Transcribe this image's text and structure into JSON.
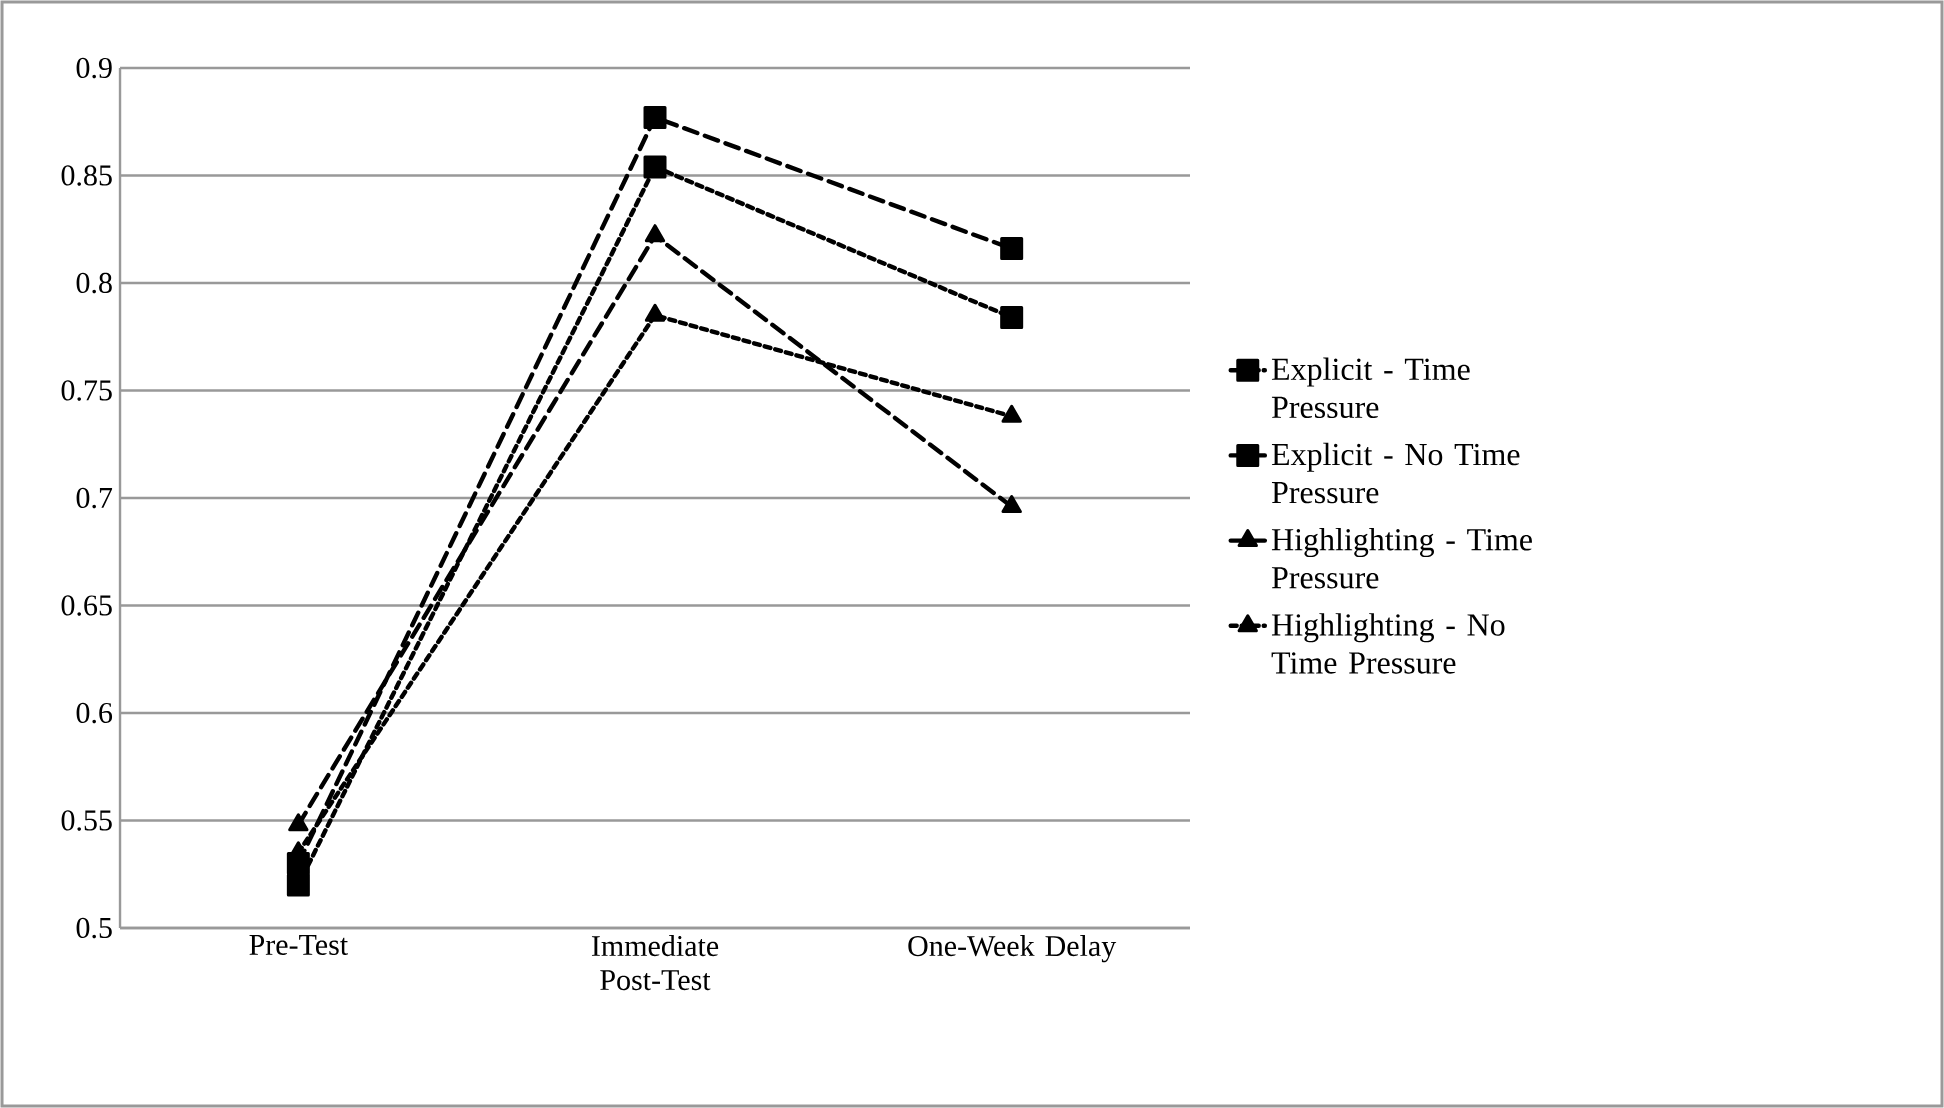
{
  "chart_data": {
    "type": "line",
    "categories": [
      "Pre-Test",
      "Immediate Post-Test",
      "One-Week Delay"
    ],
    "series": [
      {
        "name": "Explicit - Time Pressure",
        "color": "#000000",
        "values": [
          0.52,
          0.854,
          0.784
        ],
        "marker": "square",
        "line_style": "dotted"
      },
      {
        "name": "Explicit - No Time Pressure",
        "color": "#000000",
        "values": [
          0.53,
          0.877,
          0.816
        ],
        "marker": "square",
        "line_style": "dashed"
      },
      {
        "name": "Highlighting - Time Pressure",
        "color": "#000000",
        "values": [
          0.548,
          0.822,
          0.696
        ],
        "marker": "triangle",
        "line_style": "dashed"
      },
      {
        "name": "Highlighting - No Time Pressure",
        "color": "#000000",
        "values": [
          0.535,
          0.785,
          0.738
        ],
        "marker": "triangle",
        "line_style": "dotted"
      }
    ],
    "ylim": [
      0.5,
      0.9
    ],
    "yticks": [
      0.5,
      0.55,
      0.6,
      0.65,
      0.7,
      0.75,
      0.8,
      0.85,
      0.9
    ],
    "grid": "y",
    "legend": "right"
  }
}
